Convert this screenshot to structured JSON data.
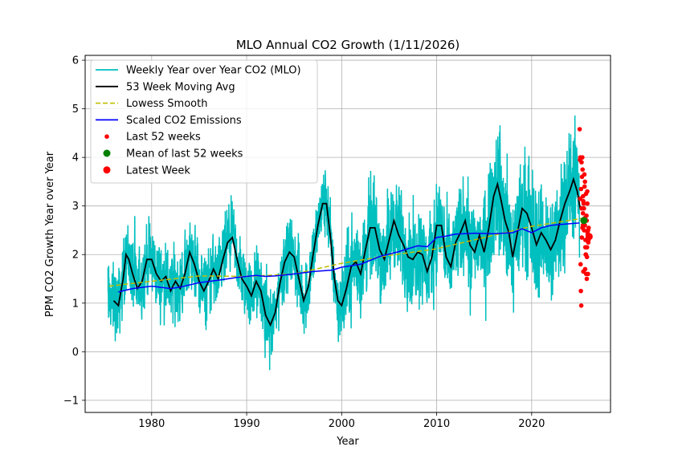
{
  "chart_data": {
    "type": "line",
    "title": "MLO Annual CO2 Growth (1/11/2026)",
    "xlabel": "Year",
    "ylabel": "PPM CO2 Growth Year over Year",
    "xlim": [
      1973,
      2028.3
    ],
    "ylim": [
      -1.25,
      6.1
    ],
    "xticks": [
      1980,
      1990,
      2000,
      2010,
      2020
    ],
    "yticks": [
      -1,
      0,
      1,
      2,
      3,
      4,
      5,
      6
    ],
    "grid": true,
    "legend_position": "top-left",
    "colors": {
      "weekly": "#00bfbf",
      "moving_avg": "#000000",
      "lowess": "#bfbf00",
      "emissions": "#0000ff",
      "last52": "#ff0000",
      "mean": "#008000",
      "latest": "#ff0000"
    },
    "legend": [
      {
        "label": "Weekly Year over Year CO2 (MLO)",
        "kind": "line",
        "color": "#00bfbf"
      },
      {
        "label": "53 Week Moving Avg",
        "kind": "line",
        "color": "#000000"
      },
      {
        "label": "Lowess Smooth",
        "kind": "dashed",
        "color": "#bfbf00"
      },
      {
        "label": "Scaled CO2 Emissions",
        "kind": "line",
        "color": "#0000ff"
      },
      {
        "label": "Last 52 weeks",
        "kind": "smalldot",
        "color": "#ff0000"
      },
      {
        "label": "Mean of last 52 weeks",
        "kind": "dot",
        "color": "#008000"
      },
      {
        "label": "Latest Week",
        "kind": "dot",
        "color": "#ff0000"
      }
    ],
    "series": [
      {
        "name": "53 Week Moving Avg",
        "x": [
          1976.0,
          1976.5,
          1977.0,
          1977.3,
          1977.6,
          1978.0,
          1978.5,
          1979.0,
          1979.5,
          1980.0,
          1980.5,
          1981.0,
          1981.5,
          1982.0,
          1982.5,
          1983.0,
          1983.5,
          1984.0,
          1984.5,
          1985.0,
          1985.5,
          1986.0,
          1986.5,
          1987.0,
          1987.5,
          1988.0,
          1988.5,
          1989.0,
          1989.5,
          1990.0,
          1990.5,
          1991.0,
          1991.5,
          1992.0,
          1992.5,
          1993.0,
          1993.5,
          1994.0,
          1994.5,
          1995.0,
          1995.5,
          1996.0,
          1996.5,
          1997.0,
          1997.5,
          1998.0,
          1998.4,
          1998.8,
          1999.2,
          1999.6,
          2000.0,
          2000.5,
          2001.0,
          2001.5,
          2002.0,
          2002.5,
          2003.0,
          2003.5,
          2004.0,
          2004.5,
          2005.0,
          2005.5,
          2006.0,
          2006.5,
          2007.0,
          2007.5,
          2008.0,
          2008.5,
          2009.0,
          2009.5,
          2010.0,
          2010.5,
          2011.0,
          2011.5,
          2012.0,
          2012.5,
          2013.0,
          2013.5,
          2014.0,
          2014.5,
          2015.0,
          2015.5,
          2016.0,
          2016.4,
          2016.8,
          2017.2,
          2017.6,
          2018.0,
          2018.5,
          2019.0,
          2019.5,
          2020.0,
          2020.5,
          2021.0,
          2021.5,
          2022.0,
          2022.5,
          2023.0,
          2023.5,
          2024.0,
          2024.4,
          2024.8,
          2025.1
        ],
        "values": [
          1.05,
          0.95,
          1.5,
          2.0,
          1.9,
          1.6,
          1.3,
          1.45,
          1.9,
          1.9,
          1.6,
          1.45,
          1.55,
          1.25,
          1.45,
          1.3,
          1.6,
          2.05,
          1.8,
          1.45,
          1.25,
          1.45,
          1.7,
          1.5,
          1.9,
          2.25,
          2.35,
          1.9,
          1.5,
          1.35,
          1.15,
          1.45,
          1.25,
          0.75,
          0.55,
          0.8,
          1.4,
          1.85,
          2.05,
          1.95,
          1.5,
          1.05,
          1.35,
          2.0,
          2.6,
          3.05,
          3.05,
          2.4,
          1.55,
          1.05,
          0.95,
          1.3,
          1.75,
          1.85,
          1.6,
          2.1,
          2.55,
          2.55,
          2.1,
          1.9,
          2.3,
          2.7,
          2.4,
          2.2,
          1.95,
          1.9,
          2.05,
          2.0,
          1.65,
          1.95,
          2.6,
          2.6,
          1.95,
          1.75,
          2.25,
          2.45,
          2.7,
          2.2,
          2.05,
          2.4,
          2.05,
          2.55,
          3.2,
          3.45,
          3.1,
          2.7,
          2.45,
          1.95,
          2.45,
          2.95,
          2.85,
          2.55,
          2.2,
          2.45,
          2.3,
          2.1,
          2.3,
          2.7,
          3.05,
          3.3,
          3.55,
          3.3,
          2.95
        ]
      },
      {
        "name": "Lowess Smooth",
        "x": [
          1975.5,
          1980,
          1985,
          1990,
          1995,
          2000,
          2005,
          2010,
          2015,
          2020,
          2025.5
        ],
        "values": [
          1.35,
          1.45,
          1.56,
          1.55,
          1.6,
          1.82,
          1.98,
          2.12,
          2.35,
          2.58,
          2.75
        ]
      },
      {
        "name": "Scaled CO2 Emissions",
        "x": [
          1976.5,
          1978,
          1980,
          1982,
          1983,
          1985,
          1987,
          1989,
          1991,
          1992,
          1993,
          1995,
          1997,
          1999,
          2000,
          2002,
          2004,
          2006,
          2008,
          2009,
          2010,
          2011,
          2012,
          2014,
          2016,
          2018,
          2019,
          2020,
          2021,
          2022,
          2023,
          2025
        ],
        "values": [
          1.23,
          1.3,
          1.35,
          1.3,
          1.33,
          1.42,
          1.47,
          1.53,
          1.57,
          1.55,
          1.56,
          1.6,
          1.65,
          1.68,
          1.74,
          1.8,
          1.96,
          2.06,
          2.18,
          2.16,
          2.35,
          2.38,
          2.42,
          2.44,
          2.43,
          2.45,
          2.53,
          2.45,
          2.55,
          2.6,
          2.62,
          2.65
        ]
      }
    ],
    "last_52_weeks": {
      "x": [
        2025.05,
        2025.08,
        2025.12,
        2025.15,
        2025.18,
        2025.22,
        2025.25,
        2025.28,
        2025.3,
        2025.33,
        2025.36,
        2025.39,
        2025.41,
        2025.44,
        2025.47,
        2025.5,
        2025.52,
        2025.55,
        2025.58,
        2025.61,
        2025.63,
        2025.66,
        2025.69,
        2025.72,
        2025.74,
        2025.77,
        2025.8,
        2025.83,
        2025.85,
        2025.88,
        2025.9,
        2025.93,
        2025.96,
        2025.98,
        2026.0,
        2026.02,
        2026.04,
        2025.2,
        2025.26,
        2025.34,
        2025.43,
        2025.49,
        2025.57,
        2025.65,
        2025.71,
        2025.79,
        2025.86,
        2025.94,
        2025.1,
        2025.4,
        2025.6,
        2025.82
      ],
      "values": [
        4.58,
        3.95,
        4.0,
        1.8,
        1.25,
        0.95,
        3.9,
        2.35,
        3.6,
        4.0,
        3.75,
        2.6,
        3.2,
        1.65,
        3.05,
        2.95,
        2.5,
        3.65,
        2.75,
        3.5,
        1.7,
        2.3,
        2.0,
        3.25,
        1.6,
        2.8,
        1.5,
        2.15,
        3.3,
        2.45,
        2.4,
        1.6,
        2.25,
        2.3,
        2.55,
        2.4,
        2.35,
        3.35,
        2.95,
        2.55,
        3.1,
        2.65,
        3.4,
        2.15,
        2.0,
        2.7,
        3.05,
        2.5,
        3.15,
        2.85,
        2.6,
        1.95
      ]
    },
    "mean_last_52_weeks": {
      "x": 2025.5,
      "value": 2.7
    },
    "latest_week": {
      "x": 2026.05,
      "value": 2.37
    }
  }
}
